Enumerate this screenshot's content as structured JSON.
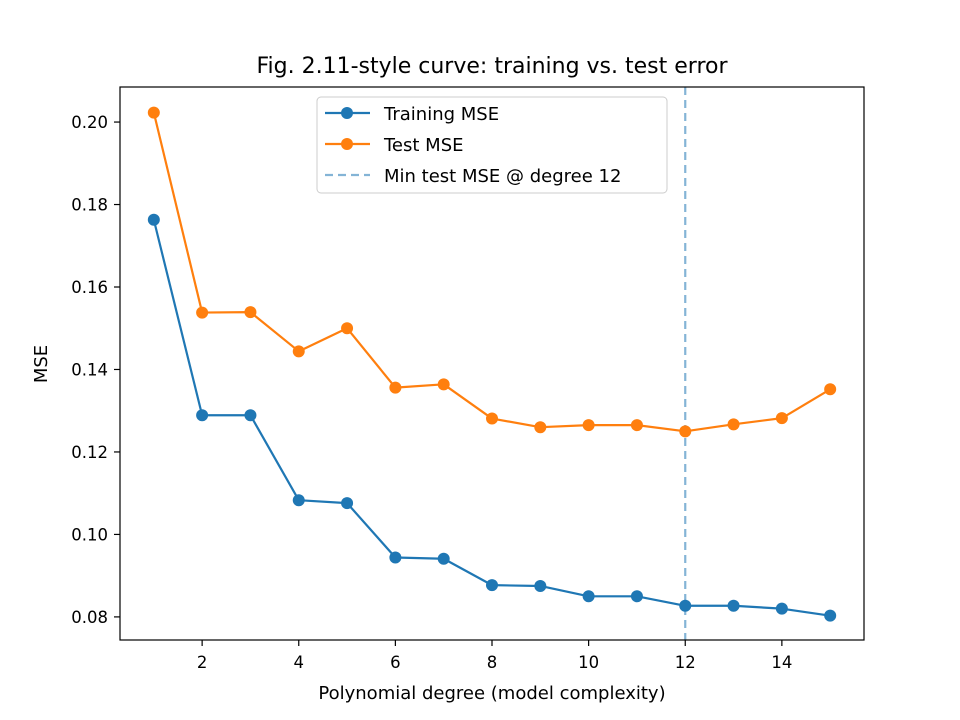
{
  "chart_data": {
    "type": "line",
    "title": "Fig. 2.11-style curve: training vs. test error",
    "xlabel": "Polynomial degree (model complexity)",
    "ylabel": "MSE",
    "xlim": [
      0.3,
      15.7
    ],
    "ylim": [
      0.0744,
      0.2085
    ],
    "x_ticks": [
      2,
      4,
      6,
      8,
      10,
      12,
      14
    ],
    "y_ticks": [
      0.08,
      0.1,
      0.12,
      0.14,
      0.16,
      0.18,
      0.2
    ],
    "y_tick_labels": [
      "0.08",
      "0.10",
      "0.12",
      "0.14",
      "0.16",
      "0.18",
      "0.20"
    ],
    "grid": false,
    "legend_position": "upper-center",
    "x": [
      1,
      2,
      3,
      4,
      5,
      6,
      7,
      8,
      9,
      10,
      11,
      12,
      13,
      14,
      15
    ],
    "series": [
      {
        "name": "Training MSE",
        "color": "#1f77b4",
        "values": [
          0.1763,
          0.1289,
          0.1289,
          0.1083,
          0.1076,
          0.0944,
          0.0941,
          0.0877,
          0.0875,
          0.085,
          0.085,
          0.0827,
          0.0827,
          0.082,
          0.0803
        ]
      },
      {
        "name": "Test MSE",
        "color": "#ff7f0e",
        "values": [
          0.2023,
          0.1538,
          0.1539,
          0.1444,
          0.15,
          0.1356,
          0.1364,
          0.1281,
          0.126,
          0.1265,
          0.1265,
          0.125,
          0.1267,
          0.1282,
          0.1352
        ]
      }
    ],
    "vline": {
      "x": 12,
      "label": "Min test MSE @ degree 12",
      "color": "#1f77b4"
    }
  }
}
